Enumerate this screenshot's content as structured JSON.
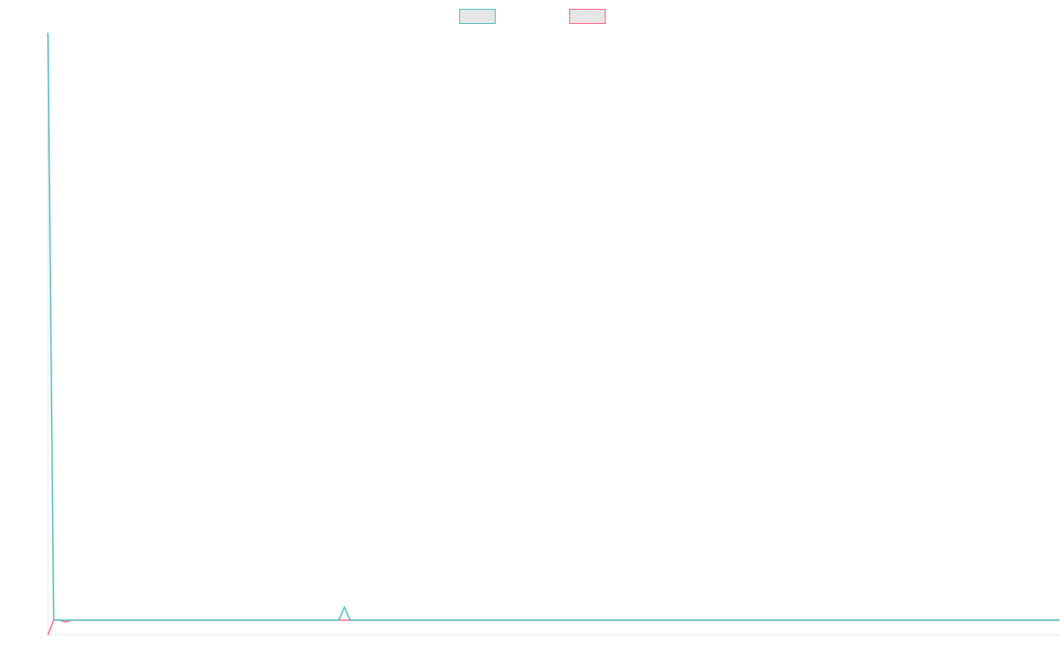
{
  "chart_data": {
    "type": "line",
    "title": "",
    "xlabel": "",
    "ylabel": "",
    "grid": false,
    "legend_position": "top",
    "xlim": [
      0,
      174
    ],
    "ylim": [
      -2.5,
      100
    ],
    "series": [
      {
        "name": "",
        "color": "#4bc0c0",
        "fill": "#e6e6e6",
        "points": [
          [
            0,
            100
          ],
          [
            1,
            0
          ],
          [
            2,
            0
          ],
          [
            3,
            0
          ],
          [
            4,
            0
          ],
          [
            5,
            0
          ],
          [
            50,
            0
          ],
          [
            51,
            2.2
          ],
          [
            52,
            0
          ],
          [
            174,
            0
          ]
        ]
      },
      {
        "name": "",
        "color": "#ff6384",
        "fill": "#e6e6e6",
        "points": [
          [
            0,
            -2.5
          ],
          [
            1,
            0
          ],
          [
            2,
            0
          ],
          [
            3,
            -0.3
          ],
          [
            4,
            0
          ],
          [
            5,
            0
          ],
          [
            50,
            0
          ],
          [
            174,
            0
          ]
        ]
      }
    ]
  }
}
